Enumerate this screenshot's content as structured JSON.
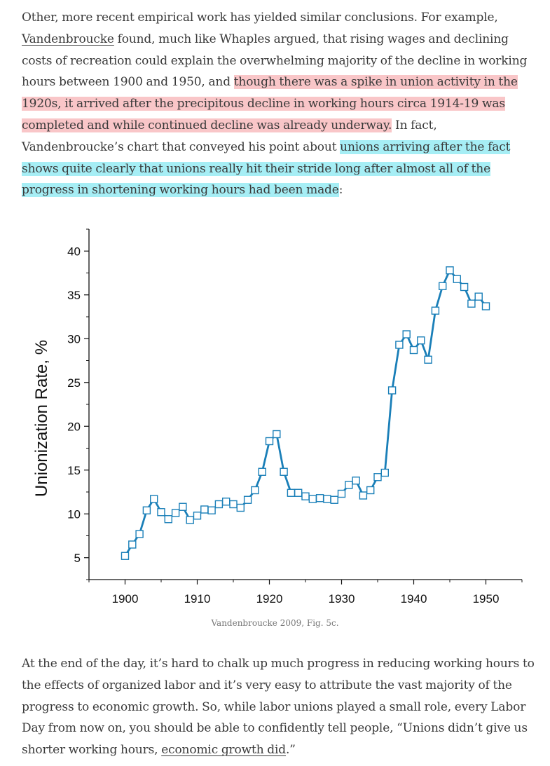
{
  "intro": {
    "text1": "Other, more recent empirical work has yielded similar conclusions. For example, ",
    "link_vandenbroucke": "Vandenbroucke",
    "text2": " found, much like Whaples argued, that rising wages and declining costs of recreation could explain the overwhelming majority of the decline in working hours between 1900 and 1950, and ",
    "highlight_red": "though there was a spike in union activity in the 1920s, it arrived after the precipitous decline in working hours circa 1914-19 was completed and while continued decline was already underway.",
    "text3": " In fact, Vandenbroucke’s chart that conveyed his point about ",
    "highlight_cyan": "unions arriving after the fact shows quite clearly that unions really hit their stride long after almost all of the progress in shortening working hours had been made",
    "text4": ":"
  },
  "figure": {
    "caption": "Vandenbroucke 2009, Fig. 5c."
  },
  "conclusion": {
    "text1": "At the end of the day, it’s hard to chalk up much progress in reducing working hours to the effects of organized labor and it’s very easy to attribute the vast majority of the progress to economic growth. So, while labor unions played a small role, every Labor Day from now on, you should be able to confidently tell people, “Unions didn’t give us shorter working hours, ",
    "link_econ": "economic growth did",
    "text2": ".”"
  },
  "colors": {
    "series": "#1a7fb8",
    "highlight_red": "#f9c6c8",
    "highlight_cyan": "#a6eef5"
  },
  "chart_data": {
    "type": "line",
    "title": "",
    "xlabel": "",
    "ylabel": "Unionization Rate, %",
    "xlim": [
      1895,
      1955
    ],
    "ylim": [
      2.5,
      42.5
    ],
    "xticks": [
      1900,
      1910,
      1920,
      1930,
      1940,
      1950
    ],
    "yticks": [
      5,
      10,
      15,
      20,
      25,
      30,
      35,
      40
    ],
    "grid": false,
    "marker": "open-square",
    "series": [
      {
        "name": "Unionization Rate",
        "x": [
          1900,
          1901,
          1902,
          1903,
          1904,
          1905,
          1906,
          1907,
          1908,
          1909,
          1910,
          1911,
          1912,
          1913,
          1914,
          1915,
          1916,
          1917,
          1918,
          1919,
          1920,
          1921,
          1922,
          1923,
          1924,
          1925,
          1926,
          1927,
          1928,
          1929,
          1930,
          1931,
          1932,
          1933,
          1934,
          1935,
          1936,
          1937,
          1938,
          1939,
          1940,
          1941,
          1942,
          1943,
          1944,
          1945,
          1946,
          1947,
          1948,
          1949,
          1950
        ],
        "y": [
          5.2,
          6.5,
          7.7,
          10.4,
          11.7,
          10.2,
          9.4,
          10.1,
          10.8,
          9.3,
          9.8,
          10.5,
          10.4,
          11.1,
          11.4,
          11.1,
          10.7,
          11.6,
          12.7,
          14.8,
          18.3,
          19.1,
          14.8,
          12.4,
          12.4,
          12.0,
          11.7,
          11.8,
          11.7,
          11.6,
          12.3,
          13.3,
          13.8,
          12.1,
          12.7,
          14.2,
          14.7,
          24.1,
          29.3,
          30.5,
          28.7,
          29.8,
          27.6,
          33.2,
          36.0,
          37.8,
          36.8,
          35.9,
          34.0,
          34.8,
          33.7
        ]
      }
    ]
  }
}
